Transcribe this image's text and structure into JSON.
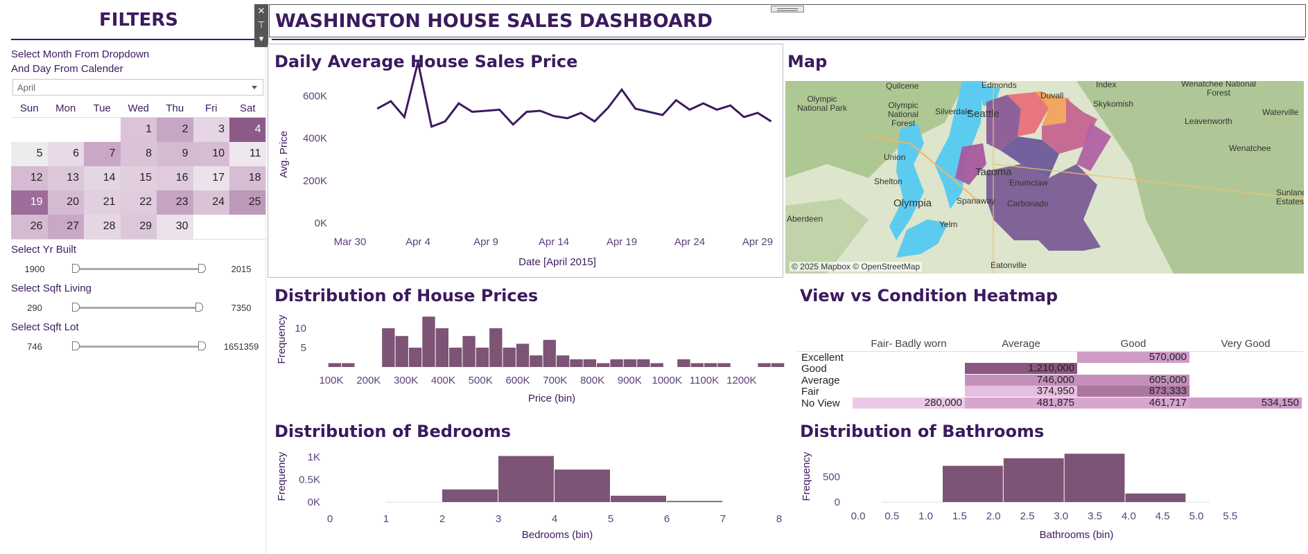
{
  "filters": {
    "title": "FILTERS",
    "instruction_line1": "Select Month From Dropdown",
    "instruction_line2": "And Day From Calender",
    "month_selected": "April",
    "weekdays": [
      "Sun",
      "Mon",
      "Tue",
      "Wed",
      "Thu",
      "Fri",
      "Sat"
    ],
    "calendar_days": [
      {
        "day": "",
        "color": "#ffffff"
      },
      {
        "day": "",
        "color": "#ffffff"
      },
      {
        "day": "",
        "color": "#ffffff"
      },
      {
        "day": "1",
        "color": "#dcc3d9"
      },
      {
        "day": "2",
        "color": "#c7a6c3"
      },
      {
        "day": "3",
        "color": "#e6d5e4"
      },
      {
        "day": "4",
        "color": "#8b5a87"
      },
      {
        "day": "5",
        "color": "#ececec"
      },
      {
        "day": "6",
        "color": "#e8dae6"
      },
      {
        "day": "7",
        "color": "#c8a8c4"
      },
      {
        "day": "8",
        "color": "#dac3d7"
      },
      {
        "day": "9",
        "color": "#d5bbd2"
      },
      {
        "day": "10",
        "color": "#d7bdd4"
      },
      {
        "day": "11",
        "color": "#eee7ed"
      },
      {
        "day": "12",
        "color": "#d5bbd2"
      },
      {
        "day": "13",
        "color": "#dcc7da"
      },
      {
        "day": "14",
        "color": "#e5d6e3"
      },
      {
        "day": "15",
        "color": "#e1cfdf"
      },
      {
        "day": "16",
        "color": "#dfcbdd"
      },
      {
        "day": "17",
        "color": "#ece2eb"
      },
      {
        "day": "18",
        "color": "#d7bdd4"
      },
      {
        "day": "19",
        "color": "#9d6c99"
      },
      {
        "day": "20",
        "color": "#d5bbd2"
      },
      {
        "day": "21",
        "color": "#e1cfdf"
      },
      {
        "day": "22",
        "color": "#dfcbdd"
      },
      {
        "day": "23",
        "color": "#c6a5c2"
      },
      {
        "day": "24",
        "color": "#dac3d7"
      },
      {
        "day": "25",
        "color": "#bd98b9"
      },
      {
        "day": "26",
        "color": "#d5bbd2"
      },
      {
        "day": "27",
        "color": "#c8a8c4"
      },
      {
        "day": "28",
        "color": "#e5d6e3"
      },
      {
        "day": "29",
        "color": "#dcc7da"
      },
      {
        "day": "30",
        "color": "#ece2eb"
      },
      {
        "day": "",
        "color": "#ffffff"
      },
      {
        "day": "",
        "color": "#ffffff"
      }
    ],
    "yr_built": {
      "label": "Select Yr Built",
      "min": "1900",
      "max": "2015"
    },
    "sqft_living": {
      "label": "Select Sqft Living",
      "min": "290",
      "max": "7350"
    },
    "sqft_lot": {
      "label": "Select Sqft Lot",
      "min": "746",
      "max": "1651359"
    }
  },
  "header": {
    "title": "WASHINGTON HOUSE SALES DASHBOARD"
  },
  "line_chart": {
    "title": "Daily Average House Sales Price"
  },
  "map_panel": {
    "title": "Map",
    "attribution": "© 2025 Mapbox © OpenStreetMap",
    "labels": [
      "Quilcene",
      "Edmonds",
      "Duvall",
      "Index",
      "Wenatchee National Forest",
      "Olympic National Park",
      "Olympic National Forest",
      "Silverdale",
      "Seattle",
      "Skykomish",
      "Leavenworth",
      "Waterville",
      "Union",
      "Wenatchee",
      "Shelton",
      "Tacoma",
      "Enumclaw",
      "Olympia",
      "Spanaway",
      "Carbonado",
      "Sunland Estates",
      "Aberdeen",
      "Yelm",
      "Eatonville"
    ]
  },
  "price_hist": {
    "title": "Distribution of House Prices"
  },
  "heatmap_panel": {
    "title": "View vs Condition Heatmap"
  },
  "bed_hist": {
    "title": "Distribution of Bedrooms"
  },
  "bath_hist": {
    "title": "Distribution of Bathrooms"
  },
  "colors": {
    "accent": "#3b1a5e",
    "bar": "#7d5475",
    "line": "#3b1a5e"
  },
  "chart_data": [
    {
      "id": "daily_price",
      "type": "line",
      "title": "Daily Average House Sales Price",
      "xlabel": "Date [April 2015]",
      "ylabel": "Avg. Price",
      "x_ticks": [
        "Mar 30",
        "Apr 4",
        "Apr 9",
        "Apr 14",
        "Apr 19",
        "Apr 24",
        "Apr 29"
      ],
      "y_ticks": [
        "0K",
        "200K",
        "400K",
        "600K"
      ],
      "ylim": [
        0,
        700000
      ],
      "x": [
        "2015-04-01",
        "2015-04-02",
        "2015-04-03",
        "2015-04-04",
        "2015-04-05",
        "2015-04-06",
        "2015-04-07",
        "2015-04-08",
        "2015-04-09",
        "2015-04-10",
        "2015-04-11",
        "2015-04-12",
        "2015-04-13",
        "2015-04-14",
        "2015-04-15",
        "2015-04-16",
        "2015-04-17",
        "2015-04-18",
        "2015-04-19",
        "2015-04-20",
        "2015-04-21",
        "2015-04-22",
        "2015-04-23",
        "2015-04-24",
        "2015-04-25",
        "2015-04-26",
        "2015-04-27",
        "2015-04-28",
        "2015-04-29",
        "2015-04-30"
      ],
      "values": [
        540000,
        575000,
        500000,
        760000,
        455000,
        480000,
        565000,
        525000,
        530000,
        535000,
        465000,
        525000,
        530000,
        505000,
        495000,
        520000,
        480000,
        545000,
        630000,
        540000,
        525000,
        510000,
        580000,
        535000,
        565000,
        535000,
        555000,
        500000,
        520000,
        480000
      ]
    },
    {
      "id": "price_hist",
      "type": "bar",
      "title": "Distribution of House Prices",
      "xlabel": "Price (bin)",
      "ylabel": "Frequency",
      "x_ticks": [
        "100K",
        "200K",
        "300K",
        "400K",
        "500K",
        "600K",
        "700K",
        "800K",
        "900K",
        "1000K",
        "1100K",
        "1200K"
      ],
      "y_ticks": [
        "5",
        "10"
      ],
      "bin_width": 36000,
      "ylim": [
        0,
        14
      ],
      "x": [
        92000,
        128000,
        236000,
        272000,
        308000,
        344000,
        380000,
        416000,
        452000,
        488000,
        524000,
        560000,
        596000,
        632000,
        668000,
        704000,
        740000,
        776000,
        812000,
        848000,
        884000,
        920000,
        956000,
        1028000,
        1064000,
        1100000,
        1136000,
        1244000,
        1280000
      ],
      "values": [
        1,
        1,
        10,
        8,
        5,
        13,
        10,
        5,
        8,
        5,
        10,
        5,
        6,
        3,
        7,
        3,
        2,
        2,
        1,
        2,
        2,
        2,
        1,
        2,
        1,
        1,
        1,
        1,
        1
      ]
    },
    {
      "id": "view_condition",
      "type": "heatmap",
      "title": "View vs Condition Heatmap",
      "columns": [
        "Fair- Badly worn",
        "Average",
        "Good",
        "Very Good"
      ],
      "rows": [
        "Excellent",
        "Good",
        "Average",
        "Fair",
        "No View"
      ],
      "cells": [
        [
          null,
          null,
          "570,000",
          null
        ],
        [
          null,
          "1,210,000",
          null,
          null
        ],
        [
          null,
          "746,000",
          "605,000",
          null
        ],
        [
          null,
          "374,950",
          "873,333",
          null
        ],
        [
          "280,000",
          "481,875",
          "461,717",
          "534,150"
        ]
      ],
      "cell_colors": [
        [
          null,
          null,
          "#cf9cc6",
          null
        ],
        [
          null,
          "#8b567f",
          null,
          null
        ],
        [
          null,
          "#c58fbb",
          "#c58fbb",
          null
        ],
        [
          null,
          "#e6bfdf",
          "#ac769f",
          null
        ],
        [
          "#ecc9e6",
          "#d6a6cd",
          "#d6a6cd",
          "#cf9cc6"
        ]
      ]
    },
    {
      "id": "bed_hist",
      "type": "bar",
      "title": "Distribution of Bedrooms",
      "xlabel": "Bedrooms (bin)",
      "ylabel": "Frequency",
      "x_ticks": [
        "0",
        "1",
        "2",
        "3",
        "4",
        "5",
        "6",
        "7",
        "8"
      ],
      "y_ticks": [
        "0K",
        "0.5K",
        "1K"
      ],
      "ylim": [
        0,
        1150
      ],
      "x": [
        1,
        2,
        3,
        4,
        5,
        6
      ],
      "values": [
        0,
        280,
        1020,
        720,
        140,
        25
      ]
    },
    {
      "id": "bath_hist",
      "type": "bar",
      "title": "Distribution of Bathrooms",
      "xlabel": "Bathrooms (bin)",
      "ylabel": "Frequency",
      "x_ticks": [
        "0.0",
        "0.5",
        "1.0",
        "1.5",
        "2.0",
        "2.5",
        "3.0",
        "3.5",
        "4.0",
        "4.5",
        "5.0",
        "5.5"
      ],
      "y_ticks": [
        "0",
        "500"
      ],
      "ylim": [
        0,
        1100
      ],
      "bin_width": 0.9,
      "x": [
        0.35,
        1.25,
        2.15,
        3.05,
        3.95
      ],
      "values": [
        0,
        720,
        870,
        960,
        170
      ]
    }
  ]
}
